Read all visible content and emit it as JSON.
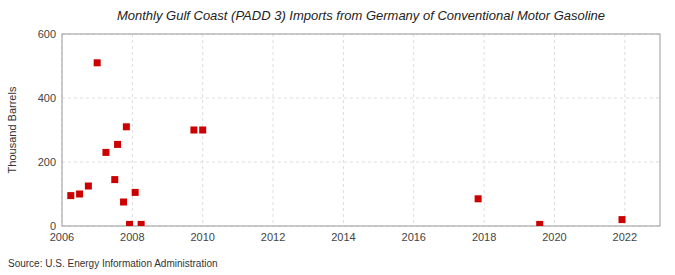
{
  "chart_data": {
    "type": "scatter",
    "title": "Monthly Gulf Coast (PADD 3) Imports from Germany of Conventional Motor Gasoline",
    "ylabel": "Thousand Barrels",
    "annotations": [
      "Source: U.S. Energy Information Administration"
    ],
    "x": [
      2006.25,
      2006.5,
      2006.75,
      2007.0,
      2007.25,
      2007.5,
      2007.58,
      2007.75,
      2007.83,
      2007.92,
      2008.08,
      2008.25,
      2009.75,
      2010.0,
      2017.83,
      2019.58,
      2021.92
    ],
    "values": [
      95,
      100,
      125,
      510,
      230,
      145,
      255,
      75,
      310,
      5,
      105,
      5,
      300,
      300,
      85,
      5,
      20
    ],
    "xlim": [
      2006,
      2023
    ],
    "ylim": [
      0,
      600
    ],
    "xticks": [
      2006,
      2008,
      2010,
      2012,
      2014,
      2016,
      2018,
      2020,
      2022
    ],
    "yticks": [
      0,
      200,
      400,
      600
    ],
    "color": "#cc0000",
    "marker": "square",
    "grid": true
  }
}
